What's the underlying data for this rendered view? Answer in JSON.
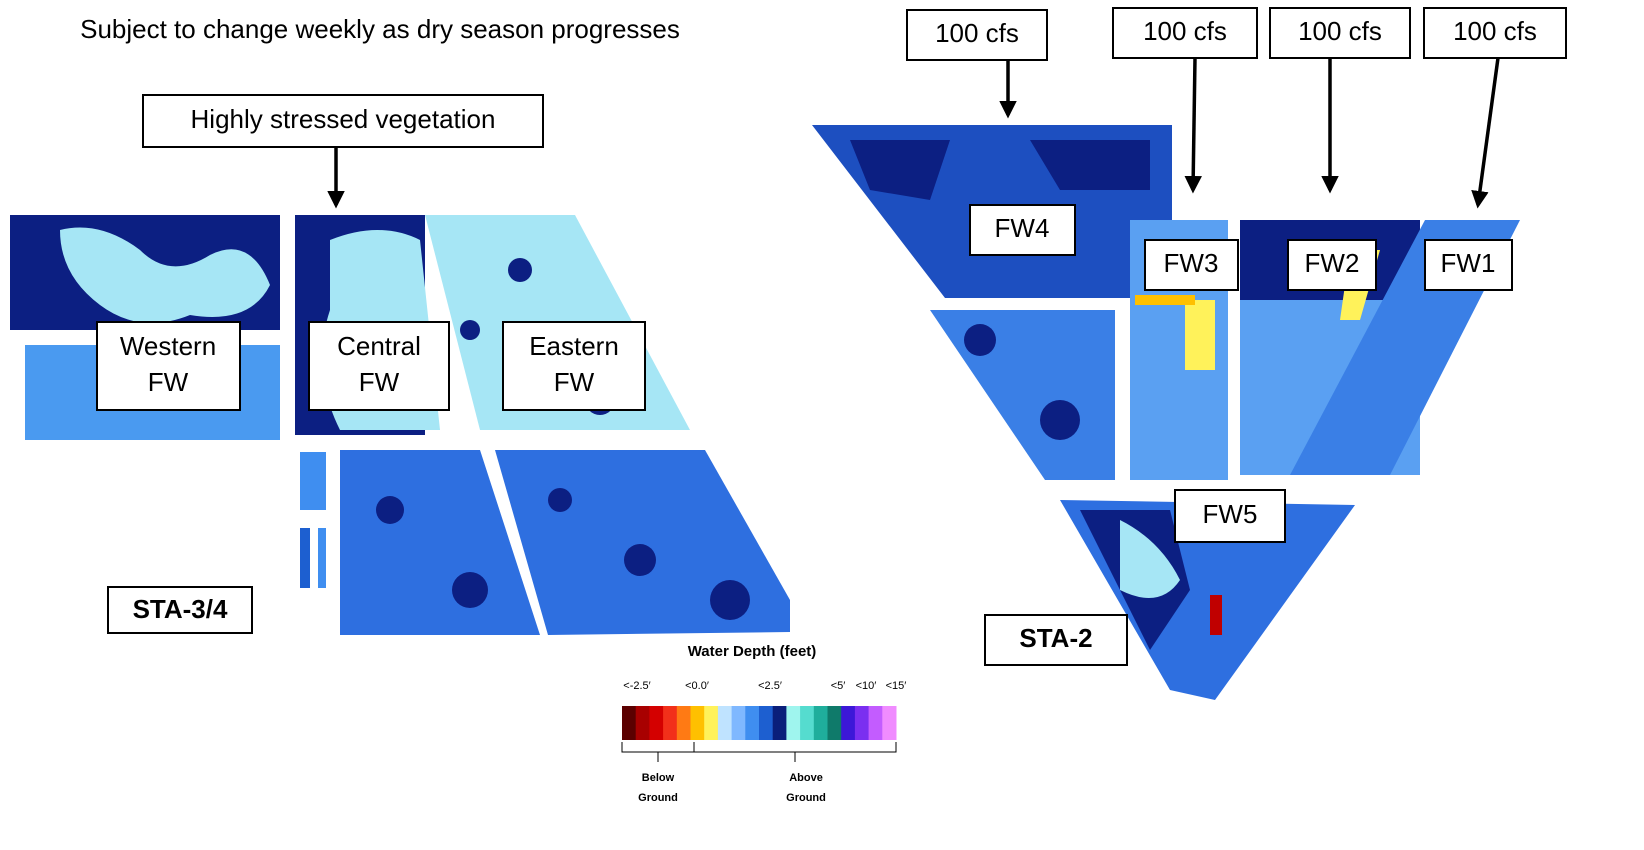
{
  "header": {
    "subtitle": "Subject to change weekly as dry season progresses"
  },
  "left_map": {
    "name": "STA-3/4",
    "callout": "Highly stressed vegetation",
    "cells": [
      [
        "Western",
        "FW"
      ],
      [
        "Central",
        "FW"
      ],
      [
        "Eastern",
        "FW"
      ]
    ]
  },
  "right_map": {
    "name": "STA-2",
    "inflows": [
      "100 cfs",
      "100 cfs",
      "100 cfs",
      "100 cfs"
    ],
    "cells": [
      "FW4",
      "FW3",
      "FW2",
      "FW1",
      "FW5"
    ]
  },
  "legend": {
    "title": "Water Depth (feet)",
    "tick_labels": [
      "<-2.5′",
      "<0.0′",
      "<2.5′",
      "<5′",
      "<10′",
      "<15′"
    ],
    "colors": [
      "#5c0000",
      "#a80000",
      "#d40000",
      "#f2301a",
      "#ff7a14",
      "#ffc000",
      "#fff25a",
      "#bfe3ff",
      "#7fb8ff",
      "#3f8ef0",
      "#1d5fd0",
      "#0a1f7a",
      "#9ff5ee",
      "#55dccf",
      "#1fae9c",
      "#0f7a6a",
      "#3c18d8",
      "#7a2ff0",
      "#c35cff",
      "#f08cff"
    ],
    "groups": [
      [
        "Below",
        "Ground"
      ],
      [
        "Above",
        "Ground"
      ]
    ]
  }
}
